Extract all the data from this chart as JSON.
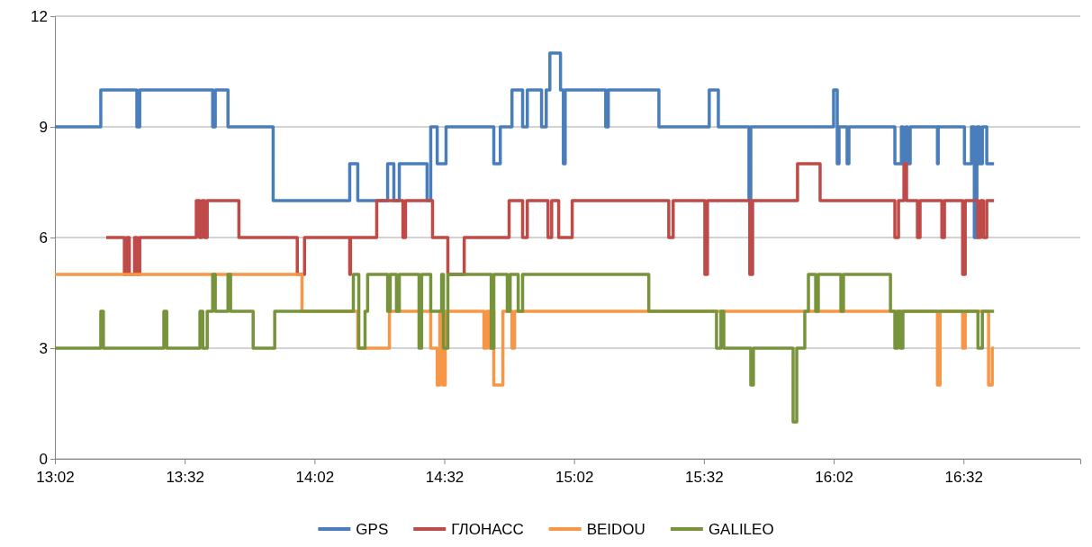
{
  "chart_data": {
    "type": "step",
    "legend": "bottom",
    "grid": "y",
    "line_style": "solid",
    "marker": "none",
    "xlim": [
      13.0333,
      16.9833
    ],
    "ylim": [
      0,
      12
    ],
    "yticks": [
      0,
      3,
      6,
      9,
      12
    ],
    "xticks": [
      {
        "value": 13.0333,
        "label": "13:02"
      },
      {
        "value": 13.5333,
        "label": "13:32"
      },
      {
        "value": 14.0333,
        "label": "14:02"
      },
      {
        "value": 14.5333,
        "label": "14:32"
      },
      {
        "value": 15.0333,
        "label": "15:02"
      },
      {
        "value": 15.5333,
        "label": "15:32"
      },
      {
        "value": 16.0333,
        "label": "16:02"
      },
      {
        "value": 16.5333,
        "label": "16:32"
      }
    ],
    "series": [
      {
        "name": "GPS",
        "color": "#4a7ebb",
        "x": [
          13.0333,
          13.21,
          13.349,
          13.36,
          13.641,
          13.651,
          13.7,
          13.874,
          14.169,
          14.2,
          14.315,
          14.339,
          14.36,
          14.467,
          14.481,
          14.506,
          14.54,
          14.724,
          14.749,
          14.794,
          14.835,
          14.853,
          14.908,
          14.926,
          14.94,
          14.981,
          14.992,
          14.999,
          15.155,
          15.165,
          15.36,
          15.554,
          15.589,
          15.707,
          15.714,
          16.033,
          16.047,
          16.054,
          16.085,
          16.092,
          16.269,
          16.294,
          16.3,
          16.311,
          16.318,
          16.328,
          16.433,
          16.436,
          16.537,
          16.564,
          16.575,
          16.585,
          16.595,
          16.606,
          16.623,
          16.651
        ],
        "values": [
          9,
          10,
          9,
          10,
          9,
          10,
          9,
          7,
          8,
          7,
          8,
          7,
          8,
          7,
          9,
          8,
          9,
          8,
          9,
          10,
          9,
          10,
          9,
          10,
          11,
          10,
          8,
          10,
          9,
          10,
          9,
          10,
          9,
          7,
          9,
          10,
          8,
          9,
          8,
          9,
          8,
          9,
          8,
          9,
          8,
          9,
          8,
          9,
          8,
          9,
          6,
          9,
          8,
          9,
          8,
          8
        ]
      },
      {
        "name": "ГЛОНАСС",
        "color": "#be4b48",
        "x": [
          13.231,
          13.301,
          13.31,
          13.32,
          13.34,
          13.35,
          13.36,
          13.578,
          13.59,
          13.6,
          13.61,
          13.62,
          13.742,
          13.967,
          13.995,
          14.169,
          14.172,
          14.273,
          14.374,
          14.384,
          14.488,
          14.547,
          14.61,
          14.783,
          14.835,
          14.853,
          14.933,
          14.947,
          14.974,
          15.026,
          15.398,
          15.415,
          15.537,
          15.547,
          15.71,
          15.721,
          15.894,
          15.981,
          16.269,
          16.283,
          16.304,
          16.314,
          16.356,
          16.366,
          16.45,
          16.46,
          16.53,
          16.54,
          16.589,
          16.6,
          16.61,
          16.623,
          16.651
        ],
        "values": [
          6,
          5,
          6,
          5,
          6,
          5,
          6,
          7,
          6,
          7,
          6,
          7,
          6,
          5,
          6,
          5,
          6,
          7,
          6,
          7,
          6,
          5,
          6,
          7,
          6,
          7,
          6,
          7,
          6,
          7,
          6,
          7,
          5,
          7,
          5,
          7,
          8,
          7,
          6,
          7,
          8,
          7,
          6,
          7,
          6,
          7,
          5,
          7,
          6,
          7,
          6,
          7,
          7
        ]
      },
      {
        "name": "BEIDOU",
        "color": "#f79646",
        "x": [
          13.0333,
          13.985,
          14.2,
          14.322,
          14.481,
          14.506,
          14.516,
          14.527,
          14.537,
          14.686,
          14.697,
          14.707,
          14.717,
          14.724,
          14.759,
          14.794,
          14.804,
          16.433,
          16.443,
          16.53,
          16.54,
          16.63,
          16.644,
          16.651
        ],
        "values": [
          5,
          4,
          3,
          4,
          3,
          2,
          4,
          2,
          4,
          3,
          4,
          3,
          4,
          2,
          4,
          3,
          4,
          2,
          4,
          3,
          4,
          2,
          3,
          3
        ]
      },
      {
        "name": "GALILEO",
        "color": "#77933c",
        "x": [
          13.0333,
          13.21,
          13.22,
          13.453,
          13.464,
          13.592,
          13.603,
          13.62,
          13.641,
          13.651,
          13.7,
          13.71,
          13.797,
          13.88,
          14.183,
          14.204,
          14.228,
          14.238,
          14.315,
          14.325,
          14.349,
          14.36,
          14.436,
          14.446,
          14.481,
          14.523,
          14.53,
          14.547,
          14.714,
          14.724,
          14.776,
          14.787,
          14.818,
          14.835,
          15.321,
          15.582,
          15.599,
          15.61,
          15.714,
          15.724,
          15.877,
          15.891,
          15.922,
          15.936,
          15.964,
          15.974,
          16.061,
          16.071,
          16.252,
          16.269,
          16.28,
          16.29,
          16.3,
          16.311,
          16.589,
          16.606,
          16.651
        ],
        "values": [
          3,
          4,
          3,
          4,
          3,
          4,
          3,
          4,
          5,
          4,
          5,
          4,
          3,
          4,
          5,
          3,
          4,
          5,
          4,
          5,
          4,
          5,
          3,
          5,
          4,
          5,
          3,
          5,
          3,
          5,
          4,
          5,
          4,
          5,
          4,
          3,
          4,
          3,
          2,
          3,
          1,
          3,
          4,
          5,
          4,
          5,
          4,
          5,
          4,
          3,
          4,
          3,
          4,
          4,
          3,
          4,
          4
        ]
      }
    ]
  }
}
